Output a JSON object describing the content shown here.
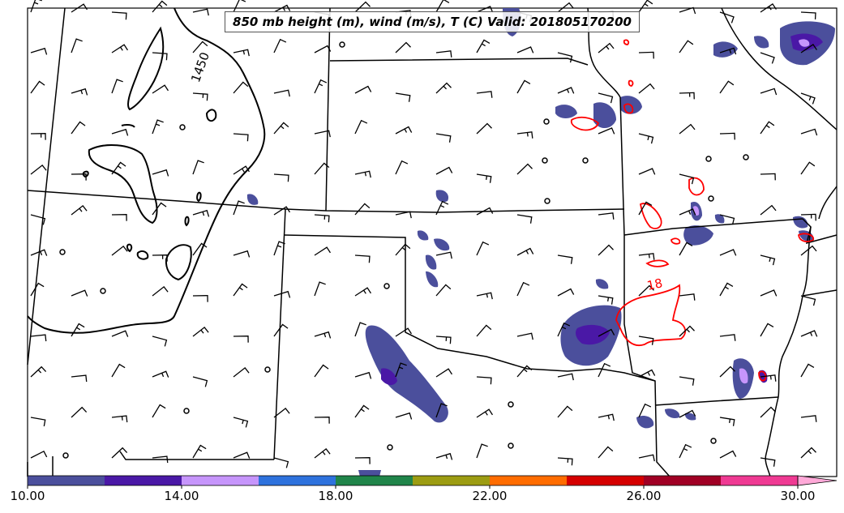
{
  "title": "850 mb height (m), wind (m/s), T (C) Valid: 201805170200",
  "contour_labels": {
    "height": "1450",
    "temperature": "18"
  },
  "colors": {
    "height_contour": "#000000",
    "temperature_contour": "#ff0000",
    "boundaries": "#000000"
  },
  "colorbar": {
    "ticks": [
      "10.00",
      "14.00",
      "18.00",
      "22.00",
      "26.00",
      "30.00"
    ],
    "bins": [
      {
        "from": 10,
        "to": 12,
        "color": "#4b4f9c"
      },
      {
        "from": 12,
        "to": 14,
        "color": "#4a18a6"
      },
      {
        "from": 14,
        "to": 16,
        "color": "#c695fb"
      },
      {
        "from": 16,
        "to": 18,
        "color": "#2e72dd"
      },
      {
        "from": 18,
        "to": 20,
        "color": "#20854a"
      },
      {
        "from": 20,
        "to": 22,
        "color": "#9c9c12"
      },
      {
        "from": 22,
        "to": 24,
        "color": "#ff6c00"
      },
      {
        "from": 24,
        "to": 26,
        "color": "#d50000"
      },
      {
        "from": 26,
        "to": 28,
        "color": "#a00024"
      },
      {
        "from": 28,
        "to": 30,
        "color": "#ef3a93"
      }
    ],
    "extend_color": "#ffa9d8"
  }
}
